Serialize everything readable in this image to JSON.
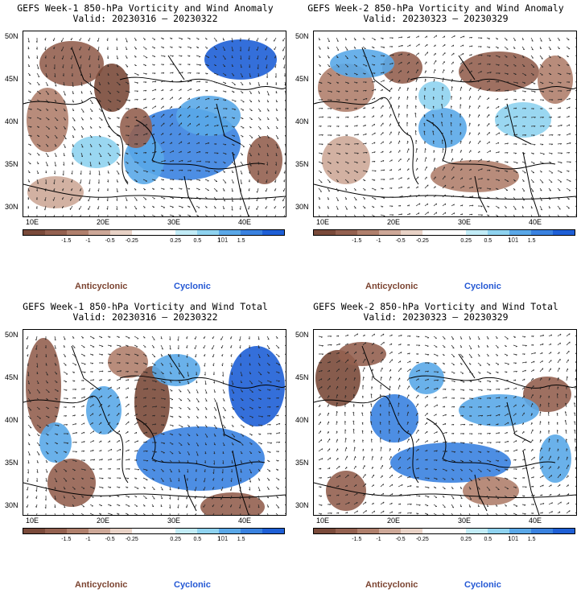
{
  "panels": [
    {
      "title": "GEFS Week-1 850-hPa Vorticity and Wind Anomaly",
      "valid": "Valid: 20230316 – 20230322"
    },
    {
      "title": "GEFS Week-2 850-hPa Vorticity and Wind Anomaly",
      "valid": "Valid: 20230323 – 20230329"
    },
    {
      "title": "GEFS Week-1 850-hPa Vorticity and Wind Total",
      "valid": "Valid: 20230316 – 20230322"
    },
    {
      "title": "GEFS Week-2 850-hPa Vorticity and Wind Total",
      "valid": "Valid: 20230323 – 20230329"
    }
  ],
  "axes": {
    "lat_labels": [
      "50N",
      "45N",
      "40N",
      "35N",
      "30N"
    ],
    "lon_labels": [
      "10E",
      "20E",
      "30E",
      "40E"
    ]
  },
  "colorbar": {
    "labels": [
      "-1.5",
      "-1",
      "-0.5",
      "-0.25",
      "0.25",
      "0.5",
      "1",
      "1.5"
    ],
    "colors": [
      "#7a4a3a",
      "#946150",
      "#b0806d",
      "#cda898",
      "#e8d2c6",
      "#ffffff",
      "#ffffff",
      "#c2ecf7",
      "#8fd3f0",
      "#5aa8e8",
      "#3a82e0",
      "#1e5fd6"
    ],
    "scale_note": "101"
  },
  "legend": {
    "anticyclonic": "Anticyclonic",
    "cyclonic": "Cyclonic",
    "anticyclonic_color": "#7b4330",
    "cyclonic_color": "#2357d4"
  }
}
